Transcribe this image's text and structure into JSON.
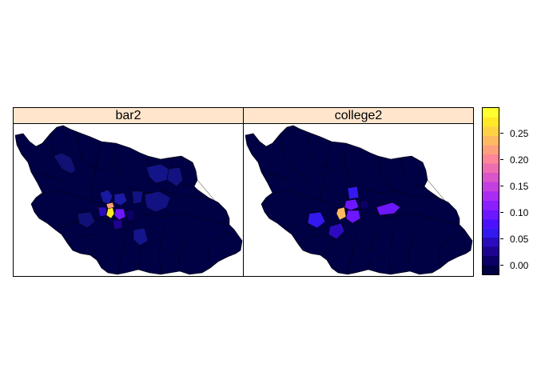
{
  "panels": [
    {
      "title": "bar2"
    },
    {
      "title": "college2"
    }
  ],
  "colorkey": {
    "colors": [
      "#000045",
      "#0c0068",
      "#1e0391",
      "#2b0bbd",
      "#3318ef",
      "#4d10ff",
      "#6c17ff",
      "#8c1fff",
      "#aa2cf2",
      "#c43fe0",
      "#da55c9",
      "#ee6db0",
      "#ff8696",
      "#ffa07c",
      "#ffba61",
      "#ffd244",
      "#ffe825",
      "#ffff2f"
    ],
    "tick_labels": [
      "0.25",
      "0.20",
      "0.15",
      "0.10",
      "0.05",
      "0.00"
    ],
    "tick_values": [
      0.25,
      0.2,
      0.15,
      0.1,
      0.05,
      0.0
    ],
    "range": [
      -0.02,
      0.29
    ]
  },
  "colors": {
    "base_region": "#000045",
    "strip_background": "#ffe5cc",
    "border": "#000000"
  }
}
